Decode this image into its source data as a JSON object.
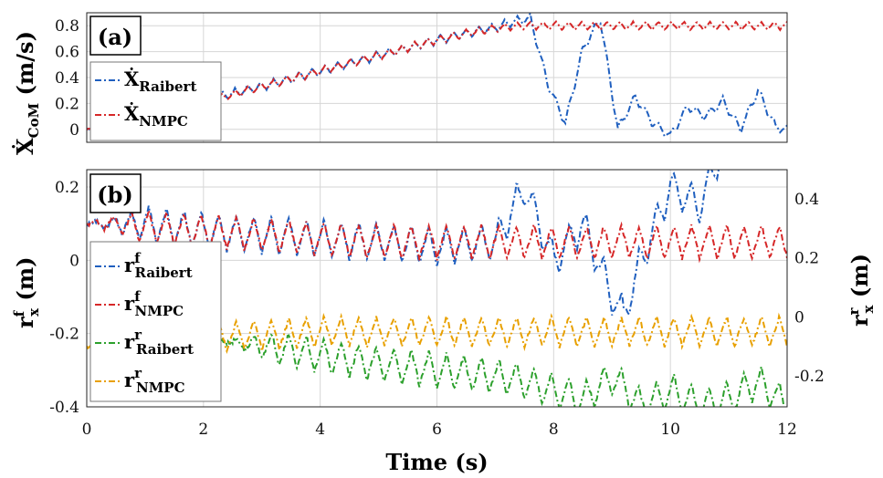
{
  "chart_data": [
    {
      "type": "line",
      "panel_label": "(a)",
      "ylabel": {
        "main": "Ẋ",
        "sub": "CoM",
        "unit": " (m/s)"
      },
      "xlim": [
        0,
        12
      ],
      "ylim": [
        -0.1,
        0.9
      ],
      "yticks": [
        "0",
        "0.2",
        "0.4",
        "0.6",
        "0.8"
      ],
      "xticks": [
        "0",
        "2",
        "4",
        "6",
        "8",
        "10",
        "12"
      ],
      "grid": true,
      "legend_position": "left",
      "series": [
        {
          "name": "Raibert",
          "legend_main": "Ẋ",
          "legend_sub": "Raibert",
          "color": "#1f5fbf",
          "x": [
            0,
            0.5,
            1,
            1.5,
            2,
            2.5,
            3,
            3.5,
            4,
            4.5,
            5,
            5.5,
            6,
            6.5,
            7,
            7.3,
            7.6,
            7.9,
            8.2,
            8.5,
            8.8,
            9.1,
            9.4,
            9.7,
            10,
            10.3,
            10.6,
            10.9,
            11.2,
            11.5,
            11.8,
            12
          ],
          "y": [
            0.0,
            0.05,
            0.1,
            0.16,
            0.22,
            0.28,
            0.33,
            0.39,
            0.45,
            0.51,
            0.57,
            0.63,
            0.69,
            0.74,
            0.79,
            0.83,
            0.86,
            0.35,
            0.05,
            0.62,
            0.85,
            0.0,
            0.25,
            0.05,
            -0.05,
            0.18,
            0.1,
            0.22,
            0.0,
            0.3,
            0.02,
            0.0
          ]
        },
        {
          "name": "NMPC",
          "legend_main": "Ẋ",
          "legend_sub": "NMPC",
          "color": "#d62728",
          "x": [
            0,
            0.5,
            1,
            1.5,
            2,
            2.5,
            3,
            3.5,
            4,
            4.5,
            5,
            5.5,
            6,
            6.5,
            7,
            7.5,
            8,
            8.5,
            9,
            9.5,
            10,
            10.5,
            11,
            11.5,
            12
          ],
          "y": [
            0.0,
            0.05,
            0.1,
            0.15,
            0.21,
            0.27,
            0.33,
            0.39,
            0.45,
            0.51,
            0.57,
            0.63,
            0.69,
            0.74,
            0.78,
            0.8,
            0.8,
            0.8,
            0.8,
            0.8,
            0.8,
            0.8,
            0.8,
            0.8,
            0.8
          ]
        }
      ]
    },
    {
      "type": "line",
      "panel_label": "(b)",
      "xlabel": "Time (s)",
      "ylabel_left": {
        "main": "r",
        "sup": "f",
        "sub": "x",
        "unit": " (m)"
      },
      "ylabel_right": {
        "main": "r",
        "sup": "r",
        "sub": "x",
        "unit": " (m)"
      },
      "xlim": [
        0,
        12
      ],
      "ylim_left": [
        -0.4,
        0.25
      ],
      "ylim_right": [
        -0.3,
        0.5
      ],
      "yticks_left": [
        "0.2",
        "0",
        "-0.2",
        "-0.4"
      ],
      "yticks_right": [
        "0.4",
        "0.2",
        "0",
        "-0.2"
      ],
      "xticks": [
        "0",
        "2",
        "4",
        "6",
        "8",
        "10",
        "12"
      ],
      "grid": true,
      "legend_position": "left",
      "series": [
        {
          "name": "Raibert",
          "legend_main": "r",
          "legend_sup": "f",
          "legend_sub": "Raibert",
          "color": "#1f5fbf",
          "axis": "left",
          "x": [
            0,
            0.5,
            1,
            2,
            3,
            4,
            5,
            6,
            7,
            7.5,
            8,
            8.5,
            9,
            9.2,
            9.5,
            10,
            10.5,
            11,
            11.5,
            12
          ],
          "y": [
            0.1,
            0.1,
            0.1,
            0.08,
            0.07,
            0.06,
            0.05,
            0.04,
            0.05,
            0.2,
            0.0,
            0.1,
            -0.1,
            -0.15,
            0.0,
            0.2,
            0.15,
            0.35,
            0.3,
            0.35
          ]
        },
        {
          "name": "NMPC",
          "legend_main": "r",
          "legend_sup": "f",
          "legend_sub": "NMPC",
          "color": "#d62728",
          "axis": "left",
          "x": [
            0,
            0.5,
            1,
            2,
            3,
            4,
            5,
            6,
            7,
            8,
            9,
            10,
            11,
            12
          ],
          "y": [
            0.1,
            0.1,
            0.09,
            0.08,
            0.07,
            0.06,
            0.05,
            0.05,
            0.05,
            0.05,
            0.05,
            0.05,
            0.05,
            0.05
          ]
        },
        {
          "name": "Raibert",
          "legend_main": "r",
          "legend_sup": "r",
          "legend_sub": "Raibert",
          "color": "#2ca02c",
          "axis": "right",
          "x": [
            2.3,
            3,
            4,
            5,
            6,
            7,
            7.5,
            8,
            8.5,
            9,
            9.5,
            10,
            10.5,
            11,
            11.5,
            12
          ],
          "y": [
            -0.08,
            -0.1,
            -0.13,
            -0.16,
            -0.18,
            -0.2,
            -0.22,
            -0.25,
            -0.28,
            -0.2,
            -0.3,
            -0.25,
            -0.3,
            -0.28,
            -0.22,
            -0.3
          ]
        },
        {
          "name": "NMPC",
          "legend_main": "r",
          "legend_sup": "r",
          "legend_sub": "NMPC",
          "color": "#e8a000",
          "axis": "right",
          "x": [
            0,
            0.5,
            1,
            2,
            3,
            4,
            5,
            6,
            7,
            8,
            9,
            10,
            11,
            12
          ],
          "y": [
            -0.1,
            -0.1,
            -0.09,
            -0.07,
            -0.06,
            -0.05,
            -0.05,
            -0.05,
            -0.05,
            -0.05,
            -0.05,
            -0.05,
            -0.05,
            -0.05
          ]
        }
      ]
    }
  ]
}
